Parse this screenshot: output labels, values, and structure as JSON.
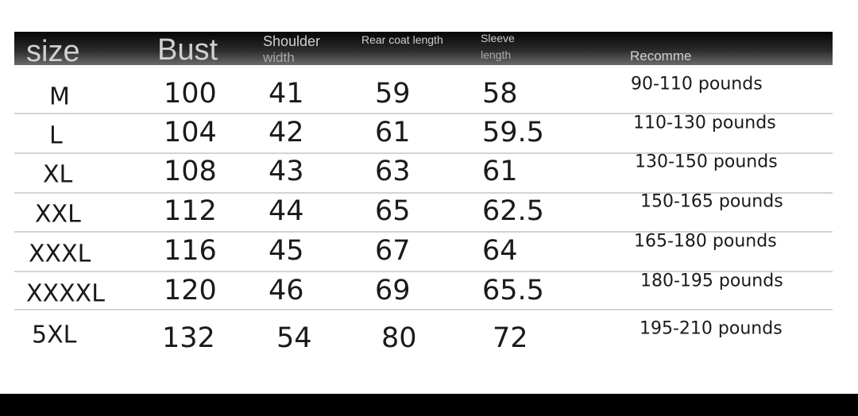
{
  "headers": {
    "size": "size",
    "bust": "Bust",
    "shoulder_1": "Shoulder",
    "shoulder_2": "width",
    "rear": "Rear coat length",
    "sleeve_1": "Sleeve",
    "sleeve_2": "length",
    "recommend": "Recomme"
  },
  "rows": [
    {
      "size": "M",
      "bust": "100",
      "shoulder": "41",
      "rear": "59",
      "sleeve": "58",
      "recommend": "90-110 pounds"
    },
    {
      "size": "L",
      "bust": "104",
      "shoulder": "42",
      "rear": "61",
      "sleeve": "59.5",
      "recommend": "110-130 pounds"
    },
    {
      "size": "XL",
      "bust": "108",
      "shoulder": "43",
      "rear": "63",
      "sleeve": "61",
      "recommend": "130-150 pounds"
    },
    {
      "size": "XXL",
      "bust": "112",
      "shoulder": "44",
      "rear": "65",
      "sleeve": "62.5",
      "recommend": "150-165 pounds"
    },
    {
      "size": "XXXL",
      "bust": "116",
      "shoulder": "45",
      "rear": "67",
      "sleeve": "64",
      "recommend": "165-180 pounds"
    },
    {
      "size": "XXXXL",
      "bust": "120",
      "shoulder": "46",
      "rear": "69",
      "sleeve": "65.5",
      "recommend": "180-195 pounds"
    },
    {
      "size": "5XL",
      "bust": "132",
      "shoulder": "54",
      "rear": "80",
      "sleeve": "72",
      "recommend": "195-210 pounds"
    }
  ]
}
